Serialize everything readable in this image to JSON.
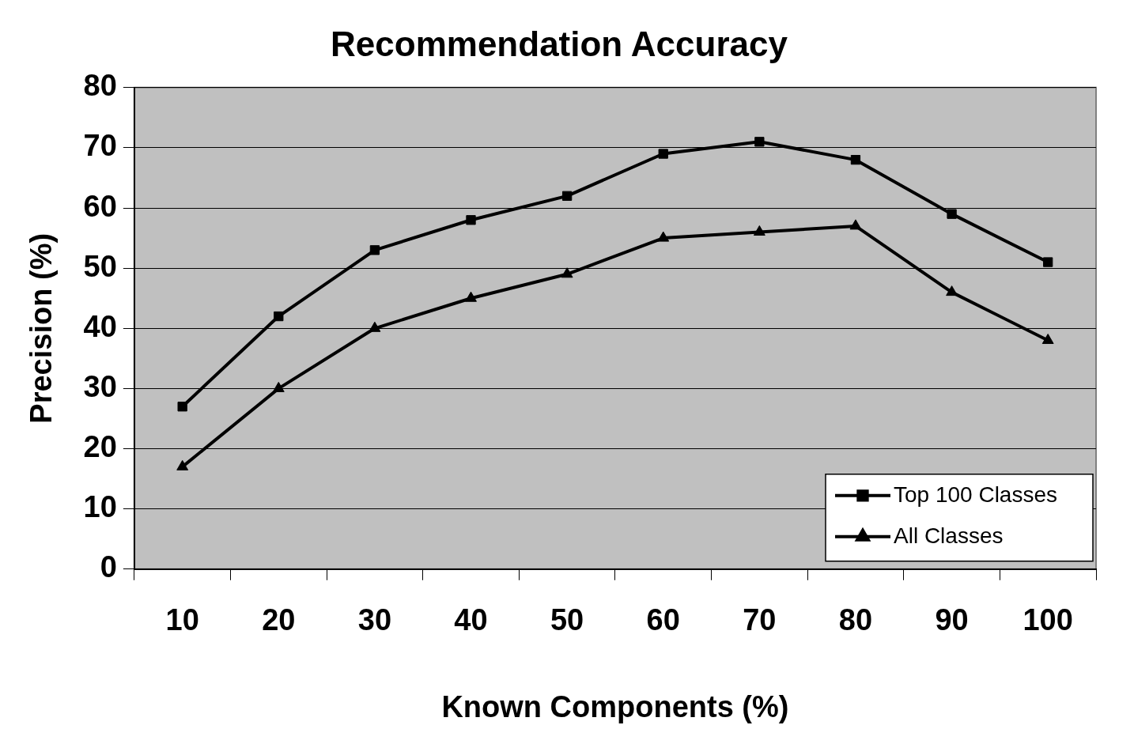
{
  "chart_data": {
    "type": "line",
    "title": "Recommendation Accuracy",
    "xlabel": "Known Components (%)",
    "ylabel": "Precision (%)",
    "categories": [
      "10",
      "20",
      "30",
      "40",
      "50",
      "60",
      "70",
      "80",
      "90",
      "100"
    ],
    "series": [
      {
        "name": "Top 100 Classes",
        "color": "#000000",
        "marker": "square",
        "values": [
          27,
          42,
          53,
          58,
          62,
          69,
          71,
          68,
          59,
          51
        ]
      },
      {
        "name": "All Classes",
        "color": "#000000",
        "marker": "triangle",
        "values": [
          17,
          30,
          40,
          45,
          49,
          55,
          56,
          57,
          46,
          38
        ]
      }
    ],
    "ylim": [
      0,
      80
    ],
    "yticks": [
      0,
      10,
      20,
      30,
      40,
      50,
      60,
      70,
      80
    ],
    "grid": "y",
    "legend": "bottom right"
  }
}
